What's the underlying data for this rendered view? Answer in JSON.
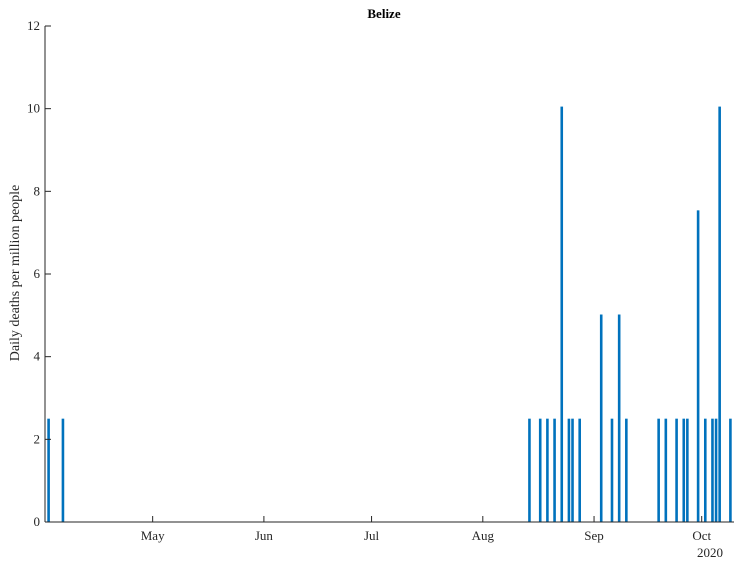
{
  "chart_data": {
    "type": "bar",
    "title": "Belize",
    "xlabel": "",
    "ylabel": "Daily deaths per million people",
    "ylim": [
      0,
      12
    ],
    "yticks": [
      0,
      2,
      4,
      6,
      8,
      10,
      12
    ],
    "xlim": [
      "2020-04-01",
      "2020-10-10"
    ],
    "xticks": [
      {
        "date": "2020-05-01",
        "label": "May"
      },
      {
        "date": "2020-06-01",
        "label": "Jun"
      },
      {
        "date": "2020-07-01",
        "label": "Jul"
      },
      {
        "date": "2020-08-01",
        "label": "Aug"
      },
      {
        "date": "2020-09-01",
        "label": "Sep"
      },
      {
        "date": "2020-10-01",
        "label": "Oct"
      }
    ],
    "year_label": "2020",
    "grid": false,
    "bar_color": "#0072bd",
    "series": [
      {
        "x": [
          "2020-04-02",
          "2020-04-06",
          "2020-08-14",
          "2020-08-17",
          "2020-08-19",
          "2020-08-21",
          "2020-08-23",
          "2020-08-25",
          "2020-08-26",
          "2020-08-28",
          "2020-09-03",
          "2020-09-06",
          "2020-09-08",
          "2020-09-10",
          "2020-09-19",
          "2020-09-21",
          "2020-09-24",
          "2020-09-26",
          "2020-09-27",
          "2020-09-30",
          "2020-10-02",
          "2020-10-04",
          "2020-10-05",
          "2020-10-06",
          "2020-10-09"
        ],
        "values": [
          2.5,
          2.5,
          2.5,
          2.5,
          2.5,
          2.5,
          10.05,
          2.5,
          2.5,
          2.5,
          5.02,
          2.5,
          5.02,
          2.5,
          2.5,
          2.5,
          2.5,
          2.5,
          2.5,
          7.54,
          2.5,
          2.5,
          2.5,
          10.05,
          2.5
        ]
      }
    ]
  }
}
